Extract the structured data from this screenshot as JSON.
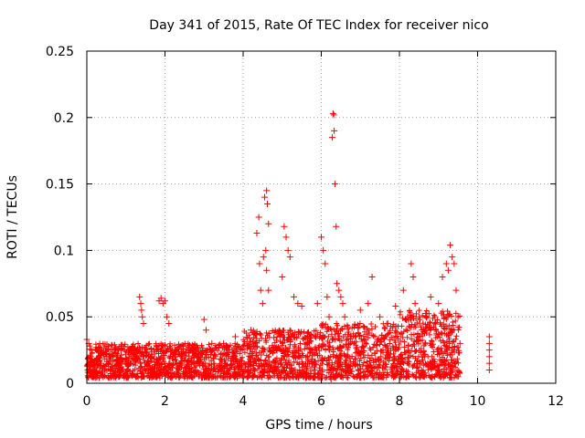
{
  "chart_data": {
    "type": "scatter",
    "title": "Day 341 of 2015, Rate Of TEC Index for receiver nico",
    "xlabel": "GPS time / hours",
    "ylabel": "ROTI / TECUs",
    "xlim": [
      0,
      12
    ],
    "ylim": [
      0,
      0.25
    ],
    "xticks": [
      0,
      2,
      4,
      6,
      8,
      10,
      12
    ],
    "yticks": [
      0,
      0.05,
      0.1,
      0.15,
      0.2,
      0.25
    ],
    "xtick_labels": [
      "0",
      "2",
      "4",
      "6",
      "8",
      "10",
      "12"
    ],
    "ytick_labels": [
      "0",
      "0.05",
      "0.1",
      "0.15",
      "0.2",
      "0.25"
    ],
    "grid": true,
    "marker": "+",
    "color": "#ff0000",
    "series": [
      {
        "name": "ROTI",
        "points": [
          [
            0.0,
            0.033
          ],
          [
            0.05,
            0.03
          ],
          [
            0.1,
            0.02
          ],
          [
            0.02,
            0.01
          ],
          [
            0.12,
            0.025
          ],
          [
            0.2,
            0.015
          ],
          [
            0.6,
            0.02
          ],
          [
            0.8,
            0.025
          ],
          [
            1.0,
            0.018
          ],
          [
            1.2,
            0.022
          ],
          [
            1.35,
            0.065
          ],
          [
            1.38,
            0.06
          ],
          [
            1.4,
            0.055
          ],
          [
            1.42,
            0.05
          ],
          [
            1.45,
            0.045
          ],
          [
            1.85,
            0.062
          ],
          [
            1.9,
            0.064
          ],
          [
            1.95,
            0.06
          ],
          [
            2.0,
            0.062
          ],
          [
            2.05,
            0.05
          ],
          [
            2.1,
            0.045
          ],
          [
            2.5,
            0.022
          ],
          [
            2.8,
            0.025
          ],
          [
            3.0,
            0.048
          ],
          [
            3.05,
            0.04
          ],
          [
            3.2,
            0.03
          ],
          [
            3.5,
            0.03
          ],
          [
            3.8,
            0.035
          ],
          [
            4.2,
            0.04
          ],
          [
            4.3,
            0.03
          ],
          [
            4.35,
            0.113
          ],
          [
            4.4,
            0.125
          ],
          [
            4.42,
            0.09
          ],
          [
            4.45,
            0.07
          ],
          [
            4.5,
            0.06
          ],
          [
            4.55,
            0.14
          ],
          [
            4.6,
            0.145
          ],
          [
            4.62,
            0.135
          ],
          [
            4.65,
            0.12
          ],
          [
            4.58,
            0.1
          ],
          [
            4.52,
            0.095
          ],
          [
            4.6,
            0.085
          ],
          [
            4.65,
            0.07
          ],
          [
            5.0,
            0.08
          ],
          [
            5.05,
            0.118
          ],
          [
            5.1,
            0.11
          ],
          [
            5.15,
            0.1
          ],
          [
            5.2,
            0.095
          ],
          [
            5.3,
            0.065
          ],
          [
            5.4,
            0.06
          ],
          [
            5.5,
            0.058
          ],
          [
            5.9,
            0.06
          ],
          [
            6.0,
            0.11
          ],
          [
            6.05,
            0.1
          ],
          [
            6.1,
            0.09
          ],
          [
            6.15,
            0.065
          ],
          [
            6.2,
            0.05
          ],
          [
            6.3,
            0.203
          ],
          [
            6.32,
            0.202
          ],
          [
            6.33,
            0.19
          ],
          [
            6.28,
            0.185
          ],
          [
            6.35,
            0.15
          ],
          [
            6.38,
            0.118
          ],
          [
            6.4,
            0.075
          ],
          [
            6.45,
            0.07
          ],
          [
            6.5,
            0.065
          ],
          [
            6.55,
            0.06
          ],
          [
            6.6,
            0.05
          ],
          [
            6.25,
            0.003
          ],
          [
            7.0,
            0.055
          ],
          [
            7.2,
            0.06
          ],
          [
            7.3,
            0.08
          ],
          [
            7.5,
            0.05
          ],
          [
            7.7,
            0.045
          ],
          [
            7.9,
            0.058
          ],
          [
            8.1,
            0.07
          ],
          [
            8.3,
            0.09
          ],
          [
            8.35,
            0.08
          ],
          [
            8.4,
            0.06
          ],
          [
            8.5,
            0.05
          ],
          [
            8.7,
            0.05
          ],
          [
            8.8,
            0.065
          ],
          [
            9.0,
            0.06
          ],
          [
            9.1,
            0.08
          ],
          [
            9.2,
            0.09
          ],
          [
            9.25,
            0.085
          ],
          [
            9.3,
            0.104
          ],
          [
            9.35,
            0.095
          ],
          [
            9.4,
            0.09
          ],
          [
            9.45,
            0.07
          ],
          [
            9.5,
            0.05
          ],
          [
            9.55,
            0.03
          ],
          [
            10.3,
            0.035
          ],
          [
            10.3,
            0.03
          ],
          [
            10.3,
            0.025
          ],
          [
            10.3,
            0.02
          ],
          [
            10.3,
            0.015
          ],
          [
            10.3,
            0.01
          ]
        ]
      }
    ]
  }
}
